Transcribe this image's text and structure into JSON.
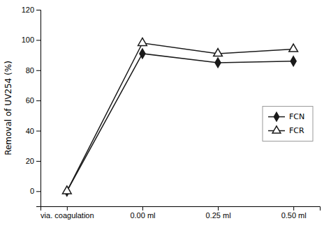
{
  "chart_data": {
    "type": "line",
    "categories": [
      "via. coagulation",
      "0.00 ml",
      "0.25 ml",
      "0.50 ml"
    ],
    "series": [
      {
        "name": "FCN",
        "color": "#1a1a1a",
        "marker": "diamond",
        "values": [
          0,
          91,
          85,
          86
        ]
      },
      {
        "name": "FCR",
        "color": "#1a1a1a",
        "marker": "triangle",
        "values": [
          0,
          98,
          91,
          94
        ]
      }
    ],
    "ylabel": "Removal of UV254 (%)",
    "ylim": [
      -10,
      120
    ],
    "yticks": [
      0,
      20,
      40,
      60,
      80,
      100,
      120
    ],
    "grid": false,
    "legend": "right"
  }
}
